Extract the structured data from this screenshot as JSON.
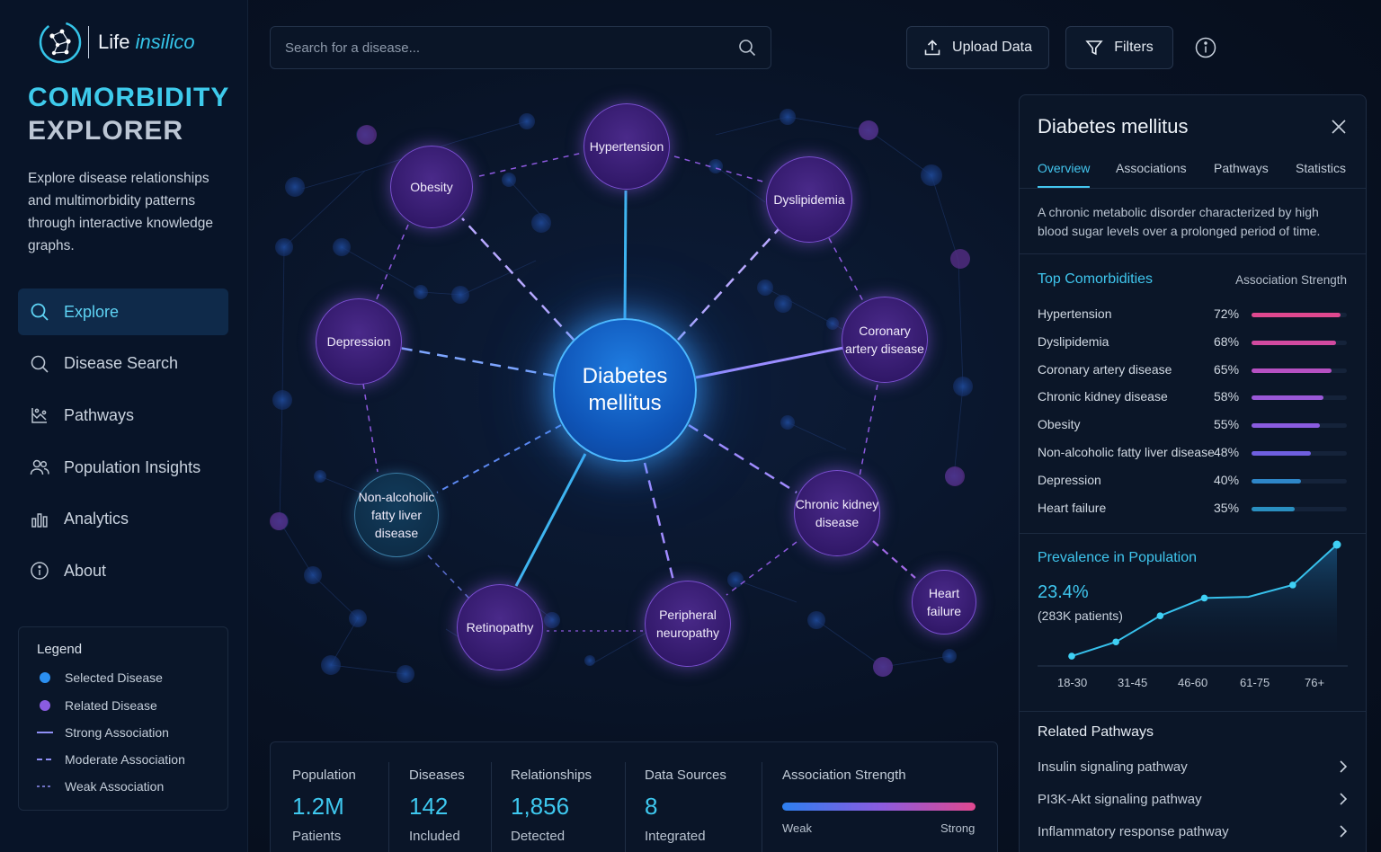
{
  "brand": {
    "life": "Life",
    "insilico": "insilico"
  },
  "app_title": {
    "line1": "COMORBIDITY",
    "line2": "EXPLORER"
  },
  "description": "Explore disease relationships and multimorbidity patterns through interactive knowledge graphs.",
  "nav": [
    {
      "label": "Explore",
      "icon": "search-icon",
      "active": true
    },
    {
      "label": "Disease Search",
      "icon": "search-icon",
      "active": false
    },
    {
      "label": "Pathways",
      "icon": "pathways-icon",
      "active": false
    },
    {
      "label": "Population Insights",
      "icon": "users-icon",
      "active": false
    },
    {
      "label": "Analytics",
      "icon": "bar-chart-icon",
      "active": false
    },
    {
      "label": "About",
      "icon": "info-icon",
      "active": false
    }
  ],
  "legend": {
    "title": "Legend",
    "items": [
      {
        "label": "Selected Disease",
        "symbol": "dot",
        "color": "#2b8ff0"
      },
      {
        "label": "Related Disease",
        "symbol": "dot",
        "color": "#8a5ce0"
      },
      {
        "label": "Strong Association",
        "symbol": "solid-line",
        "color": "#8f8ff5"
      },
      {
        "label": "Moderate Association",
        "symbol": "dashed-line",
        "color": "#8f8ff5"
      },
      {
        "label": "Weak Association",
        "symbol": "dotted-line",
        "color": "#8f8ff5"
      }
    ]
  },
  "search": {
    "placeholder": "Search for a disease..."
  },
  "toolbar": {
    "upload_label": "Upload Data",
    "filters_label": "Filters"
  },
  "graph": {
    "center": {
      "line1": "Diabetes",
      "line2": "mellitus"
    },
    "nodes": [
      {
        "id": "hypertension",
        "lines": [
          "Hypertension"
        ],
        "style": "rel"
      },
      {
        "id": "obesity",
        "lines": [
          "Obesity"
        ],
        "style": "rel"
      },
      {
        "id": "dyslipidemia",
        "lines": [
          "Dyslipidemia"
        ],
        "style": "rel"
      },
      {
        "id": "depression",
        "lines": [
          "Depression"
        ],
        "style": "rel"
      },
      {
        "id": "coronary",
        "lines": [
          "Coronary",
          "artery disease"
        ],
        "style": "rel"
      },
      {
        "id": "nafld",
        "lines": [
          "Non-alcoholic",
          "fatty liver",
          "disease"
        ],
        "style": "teal"
      },
      {
        "id": "ckd",
        "lines": [
          "Chronic kidney",
          "disease"
        ],
        "style": "rel"
      },
      {
        "id": "retinopathy",
        "lines": [
          "Retinopathy"
        ],
        "style": "rel"
      },
      {
        "id": "neuropathy",
        "lines": [
          "Peripheral",
          "neuropathy"
        ],
        "style": "rel"
      },
      {
        "id": "heartfailure",
        "lines": [
          "Heart",
          "failure"
        ],
        "style": "rel"
      }
    ]
  },
  "stats": [
    {
      "label": "Population",
      "value": "1.2M",
      "sub": "Patients"
    },
    {
      "label": "Diseases",
      "value": "142",
      "sub": "Included"
    },
    {
      "label": "Relationships",
      "value": "1,856",
      "sub": "Detected"
    },
    {
      "label": "Data Sources",
      "value": "8",
      "sub": "Integrated"
    }
  ],
  "strength_scale": {
    "label": "Association Strength",
    "weak": "Weak",
    "strong": "Strong"
  },
  "panel": {
    "title": "Diabetes mellitus",
    "tabs": [
      "Overview",
      "Associations",
      "Pathways",
      "Statistics"
    ],
    "description": "A chronic metabolic disorder characterized by high blood sugar levels over a prolonged period of time.",
    "comorbidities_title": "Top Comorbidities",
    "strength_header": "Association Strength",
    "comorbidities": [
      {
        "name": "Hypertension",
        "pct": "72%",
        "value": 72,
        "color": "#e0488f"
      },
      {
        "name": "Dyslipidemia",
        "pct": "68%",
        "value": 68,
        "color": "#d24aa0"
      },
      {
        "name": "Coronary artery disease",
        "pct": "65%",
        "value": 65,
        "color": "#b650c2"
      },
      {
        "name": "Chronic kidney disease",
        "pct": "58%",
        "value": 58,
        "color": "#9a58d8"
      },
      {
        "name": "Obesity",
        "pct": "55%",
        "value": 55,
        "color": "#8a5ce0"
      },
      {
        "name": "Non-alcoholic fatty liver disease",
        "pct": "48%",
        "value": 48,
        "color": "#6f5fe0"
      },
      {
        "name": "Depression",
        "pct": "40%",
        "value": 40,
        "color": "#2e86c8"
      },
      {
        "name": "Heart failure",
        "pct": "35%",
        "value": 35,
        "color": "#2a8fc0"
      }
    ],
    "prevalence_title": "Prevalence in Population",
    "prevalence_value": "23.4%",
    "prevalence_sub": "(283K patients)",
    "pathways_title": "Related Pathways",
    "pathways": [
      "Insulin signaling pathway",
      "PI3K-Akt signaling pathway",
      "Inflammatory response pathway"
    ]
  },
  "chart_data": {
    "type": "area",
    "title": "Prevalence in Population",
    "x_labels": [
      "18-30",
      "31-45",
      "46-60",
      "61-75",
      "76+"
    ],
    "points": [
      0.06,
      0.18,
      0.4,
      0.55,
      0.56,
      0.66,
      1.0
    ],
    "note": "relative prevalence by age band; values not printed"
  }
}
